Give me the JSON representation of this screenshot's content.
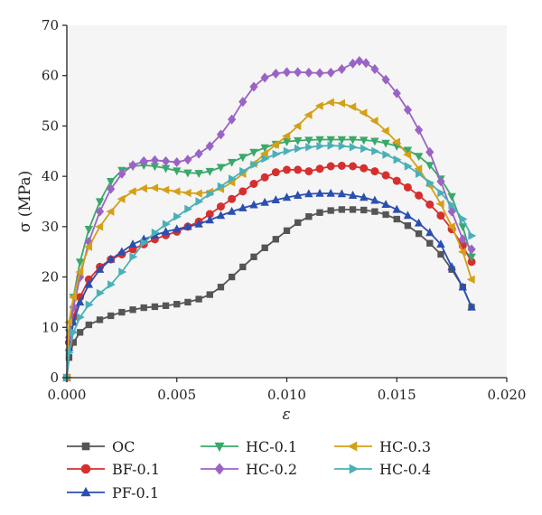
{
  "chart_data": {
    "type": "line",
    "xlabel": "ε",
    "ylabel": "σ (MPa)",
    "xlim": [
      0,
      0.02
    ],
    "ylim": [
      0,
      70
    ],
    "xticks": [
      "0.000",
      "0.005",
      "0.010",
      "0.015",
      "0.020"
    ],
    "yticks": [
      "0",
      "10",
      "20",
      "30",
      "40",
      "50",
      "60",
      "70"
    ],
    "grid": false,
    "legend_position": "bottom",
    "series": [
      {
        "name": "OC",
        "color": "#555555",
        "marker": "square",
        "points": [
          [
            0,
            0
          ],
          [
            0.0001,
            4
          ],
          [
            0.0003,
            7
          ],
          [
            0.0006,
            9
          ],
          [
            0.001,
            10.5
          ],
          [
            0.0015,
            11.5
          ],
          [
            0.002,
            12.3
          ],
          [
            0.0025,
            13
          ],
          [
            0.003,
            13.5
          ],
          [
            0.0035,
            13.9
          ],
          [
            0.004,
            14.1
          ],
          [
            0.0045,
            14.3
          ],
          [
            0.005,
            14.6
          ],
          [
            0.0055,
            15
          ],
          [
            0.006,
            15.6
          ],
          [
            0.0065,
            16.5
          ],
          [
            0.007,
            18
          ],
          [
            0.0075,
            20
          ],
          [
            0.008,
            22
          ],
          [
            0.0085,
            24
          ],
          [
            0.009,
            25.8
          ],
          [
            0.0095,
            27.5
          ],
          [
            0.01,
            29.2
          ],
          [
            0.0105,
            30.8
          ],
          [
            0.011,
            32
          ],
          [
            0.0115,
            32.8
          ],
          [
            0.012,
            33.2
          ],
          [
            0.0125,
            33.4
          ],
          [
            0.013,
            33.4
          ],
          [
            0.0135,
            33.3
          ],
          [
            0.014,
            33
          ],
          [
            0.0145,
            32.4
          ],
          [
            0.015,
            31.5
          ],
          [
            0.0155,
            30.2
          ],
          [
            0.016,
            28.6
          ],
          [
            0.0165,
            26.7
          ],
          [
            0.017,
            24.5
          ],
          [
            0.0175,
            21.5
          ],
          [
            0.018,
            18
          ],
          [
            0.0184,
            14
          ]
        ]
      },
      {
        "name": "BF-0.1",
        "color": "#d62f2f",
        "marker": "circle",
        "points": [
          [
            0,
            0
          ],
          [
            0.0001,
            7
          ],
          [
            0.0003,
            12
          ],
          [
            0.0006,
            16
          ],
          [
            0.001,
            19.5
          ],
          [
            0.0015,
            22
          ],
          [
            0.002,
            23.5
          ],
          [
            0.0025,
            24.5
          ],
          [
            0.003,
            25.5
          ],
          [
            0.0035,
            26.5
          ],
          [
            0.004,
            27.5
          ],
          [
            0.0045,
            28.3
          ],
          [
            0.005,
            29
          ],
          [
            0.0055,
            30
          ],
          [
            0.006,
            31
          ],
          [
            0.0065,
            32.5
          ],
          [
            0.007,
            34
          ],
          [
            0.0075,
            35.5
          ],
          [
            0.008,
            37
          ],
          [
            0.0085,
            38.5
          ],
          [
            0.009,
            39.8
          ],
          [
            0.0095,
            40.8
          ],
          [
            0.01,
            41.3
          ],
          [
            0.0105,
            41.3
          ],
          [
            0.011,
            41
          ],
          [
            0.0115,
            41.5
          ],
          [
            0.012,
            42
          ],
          [
            0.0125,
            42.1
          ],
          [
            0.013,
            42
          ],
          [
            0.0135,
            41.6
          ],
          [
            0.014,
            41
          ],
          [
            0.0145,
            40.2
          ],
          [
            0.015,
            39.1
          ],
          [
            0.0155,
            37.8
          ],
          [
            0.016,
            36.2
          ],
          [
            0.0165,
            34.4
          ],
          [
            0.017,
            32.2
          ],
          [
            0.0175,
            29.5
          ],
          [
            0.018,
            26.2
          ],
          [
            0.0184,
            23
          ]
        ]
      },
      {
        "name": "PF-0.1",
        "color": "#2a4fb0",
        "marker": "triangle-up",
        "points": [
          [
            0,
            0
          ],
          [
            0.0001,
            6
          ],
          [
            0.0003,
            11
          ],
          [
            0.0006,
            15
          ],
          [
            0.001,
            18.5
          ],
          [
            0.0015,
            21.5
          ],
          [
            0.002,
            23.5
          ],
          [
            0.0025,
            25
          ],
          [
            0.003,
            26.5
          ],
          [
            0.0035,
            27.5
          ],
          [
            0.004,
            28.3
          ],
          [
            0.0045,
            29
          ],
          [
            0.005,
            29.5
          ],
          [
            0.0055,
            30
          ],
          [
            0.006,
            30.5
          ],
          [
            0.0065,
            31.3
          ],
          [
            0.007,
            32.2
          ],
          [
            0.0075,
            33
          ],
          [
            0.008,
            33.7
          ],
          [
            0.0085,
            34.3
          ],
          [
            0.009,
            34.8
          ],
          [
            0.0095,
            35.3
          ],
          [
            0.01,
            35.8
          ],
          [
            0.0105,
            36.2
          ],
          [
            0.011,
            36.5
          ],
          [
            0.0115,
            36.6
          ],
          [
            0.012,
            36.6
          ],
          [
            0.0125,
            36.5
          ],
          [
            0.013,
            36.2
          ],
          [
            0.0135,
            35.8
          ],
          [
            0.014,
            35.2
          ],
          [
            0.0145,
            34.4
          ],
          [
            0.015,
            33.4
          ],
          [
            0.0155,
            32.2
          ],
          [
            0.016,
            30.7
          ],
          [
            0.0165,
            28.8
          ],
          [
            0.017,
            26.5
          ],
          [
            0.0175,
            22
          ],
          [
            0.018,
            18
          ],
          [
            0.0184,
            14
          ]
        ]
      },
      {
        "name": "HC-0.1",
        "color": "#3aa86a",
        "marker": "triangle-down",
        "points": [
          [
            0,
            0
          ],
          [
            0.0001,
            9
          ],
          [
            0.0003,
            16
          ],
          [
            0.0006,
            23
          ],
          [
            0.001,
            29.5
          ],
          [
            0.0015,
            35
          ],
          [
            0.002,
            39
          ],
          [
            0.0025,
            41.2
          ],
          [
            0.003,
            42
          ],
          [
            0.0035,
            42.2
          ],
          [
            0.004,
            42
          ],
          [
            0.0045,
            41.6
          ],
          [
            0.005,
            41.1
          ],
          [
            0.0055,
            40.7
          ],
          [
            0.006,
            40.6
          ],
          [
            0.0065,
            41
          ],
          [
            0.007,
            41.8
          ],
          [
            0.0075,
            42.8
          ],
          [
            0.008,
            43.8
          ],
          [
            0.0085,
            44.8
          ],
          [
            0.009,
            45.7
          ],
          [
            0.0095,
            46.4
          ],
          [
            0.01,
            46.9
          ],
          [
            0.0105,
            47.1
          ],
          [
            0.011,
            47.2
          ],
          [
            0.0115,
            47.3
          ],
          [
            0.012,
            47.3
          ],
          [
            0.0125,
            47.3
          ],
          [
            0.013,
            47.3
          ],
          [
            0.0135,
            47.2
          ],
          [
            0.014,
            47
          ],
          [
            0.0145,
            46.6
          ],
          [
            0.015,
            46
          ],
          [
            0.0155,
            45.2
          ],
          [
            0.016,
            44
          ],
          [
            0.0165,
            42.2
          ],
          [
            0.017,
            39.5
          ],
          [
            0.0175,
            36
          ],
          [
            0.018,
            30
          ],
          [
            0.0184,
            24
          ]
        ]
      },
      {
        "name": "HC-0.2",
        "color": "#9a64c4",
        "marker": "diamond",
        "points": [
          [
            0,
            0
          ],
          [
            0.0001,
            8
          ],
          [
            0.0003,
            14
          ],
          [
            0.0006,
            20
          ],
          [
            0.001,
            27
          ],
          [
            0.0015,
            33
          ],
          [
            0.002,
            37.5
          ],
          [
            0.0025,
            40.5
          ],
          [
            0.003,
            42.2
          ],
          [
            0.0035,
            43
          ],
          [
            0.004,
            43.2
          ],
          [
            0.0045,
            43
          ],
          [
            0.005,
            42.8
          ],
          [
            0.0055,
            43.3
          ],
          [
            0.006,
            44.5
          ],
          [
            0.0065,
            46
          ],
          [
            0.007,
            48.3
          ],
          [
            0.0075,
            51.3
          ],
          [
            0.008,
            54.8
          ],
          [
            0.0085,
            57.8
          ],
          [
            0.009,
            59.6
          ],
          [
            0.0095,
            60.4
          ],
          [
            0.01,
            60.7
          ],
          [
            0.0105,
            60.7
          ],
          [
            0.011,
            60.6
          ],
          [
            0.0115,
            60.5
          ],
          [
            0.012,
            60.6
          ],
          [
            0.0125,
            61.3
          ],
          [
            0.013,
            62.4
          ],
          [
            0.0133,
            62.9
          ],
          [
            0.0136,
            62.5
          ],
          [
            0.014,
            61.3
          ],
          [
            0.0145,
            59.2
          ],
          [
            0.015,
            56.5
          ],
          [
            0.0155,
            53.2
          ],
          [
            0.016,
            49.2
          ],
          [
            0.0165,
            44.8
          ],
          [
            0.017,
            39
          ],
          [
            0.0175,
            33
          ],
          [
            0.018,
            27.5
          ],
          [
            0.0184,
            25.5
          ]
        ]
      },
      {
        "name": "HC-0.3",
        "color": "#d4a017",
        "marker": "triangle-left",
        "points": [
          [
            0,
            0
          ],
          [
            0.0001,
            11
          ],
          [
            0.0003,
            16
          ],
          [
            0.0006,
            21
          ],
          [
            0.001,
            26
          ],
          [
            0.0015,
            30
          ],
          [
            0.002,
            33
          ],
          [
            0.0025,
            35.5
          ],
          [
            0.003,
            37
          ],
          [
            0.0035,
            37.6
          ],
          [
            0.004,
            37.7
          ],
          [
            0.0045,
            37.3
          ],
          [
            0.005,
            37
          ],
          [
            0.0055,
            36.7
          ],
          [
            0.006,
            36.6
          ],
          [
            0.0065,
            36.9
          ],
          [
            0.007,
            37.5
          ],
          [
            0.0075,
            38.8
          ],
          [
            0.008,
            40.5
          ],
          [
            0.0085,
            42.5
          ],
          [
            0.009,
            44.5
          ],
          [
            0.0095,
            46.3
          ],
          [
            0.01,
            48
          ],
          [
            0.0105,
            50
          ],
          [
            0.011,
            52.2
          ],
          [
            0.0115,
            54
          ],
          [
            0.012,
            54.7
          ],
          [
            0.0125,
            54.5
          ],
          [
            0.013,
            53.8
          ],
          [
            0.0135,
            52.6
          ],
          [
            0.014,
            51
          ],
          [
            0.0145,
            49
          ],
          [
            0.015,
            46.8
          ],
          [
            0.0155,
            44.3
          ],
          [
            0.016,
            41.5
          ],
          [
            0.0165,
            38.2
          ],
          [
            0.017,
            34.5
          ],
          [
            0.0175,
            30
          ],
          [
            0.018,
            25
          ],
          [
            0.0184,
            19.5
          ]
        ]
      },
      {
        "name": "HC-0.4",
        "color": "#4ab0b8",
        "marker": "triangle-right",
        "points": [
          [
            0,
            0
          ],
          [
            0.0001,
            5
          ],
          [
            0.0003,
            9
          ],
          [
            0.0006,
            12
          ],
          [
            0.001,
            14.5
          ],
          [
            0.0015,
            16.8
          ],
          [
            0.002,
            18.5
          ],
          [
            0.0025,
            21
          ],
          [
            0.003,
            24
          ],
          [
            0.0035,
            26.8
          ],
          [
            0.004,
            28.8
          ],
          [
            0.0045,
            30.5
          ],
          [
            0.005,
            32
          ],
          [
            0.0055,
            33.5
          ],
          [
            0.006,
            35
          ],
          [
            0.0065,
            36.5
          ],
          [
            0.007,
            38
          ],
          [
            0.0075,
            39.5
          ],
          [
            0.008,
            41
          ],
          [
            0.0085,
            42.3
          ],
          [
            0.009,
            43.5
          ],
          [
            0.0095,
            44.4
          ],
          [
            0.01,
            45
          ],
          [
            0.0105,
            45.5
          ],
          [
            0.011,
            45.8
          ],
          [
            0.0115,
            46
          ],
          [
            0.012,
            46.1
          ],
          [
            0.0125,
            46
          ],
          [
            0.013,
            45.8
          ],
          [
            0.0135,
            45.5
          ],
          [
            0.014,
            45
          ],
          [
            0.0145,
            44.3
          ],
          [
            0.015,
            43.3
          ],
          [
            0.0155,
            42
          ],
          [
            0.016,
            40.5
          ],
          [
            0.0165,
            38.7
          ],
          [
            0.017,
            36.7
          ],
          [
            0.0175,
            34.3
          ],
          [
            0.018,
            31.5
          ],
          [
            0.0184,
            28.2
          ]
        ]
      }
    ]
  }
}
